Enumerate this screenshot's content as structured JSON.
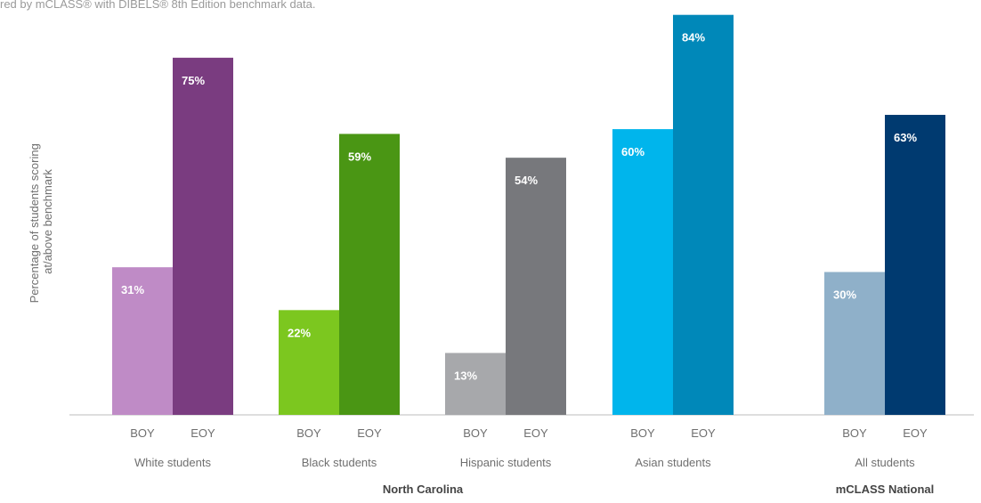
{
  "header_note": "red by mCLASS® with DIBELS® 8th Edition benchmark data.",
  "colors": {
    "white_boy": "#bf8bc6",
    "white_eoy": "#7a3c80",
    "black_boy": "#7cc71f",
    "black_eoy": "#4a9614",
    "hispanic_boy": "#a7a8ab",
    "hispanic_eoy": "#77787c",
    "asian_boy": "#00b5ec",
    "asian_eoy": "#0088b9",
    "national_boy": "#8fb0c9",
    "national_eoy": "#003a70"
  },
  "chart_data": {
    "type": "bar",
    "title": "",
    "xlabel": "",
    "ylabel": "Percentage of students scoring at/above benchmark",
    "ylabel_lines": [
      "Percentage of students scoring",
      "at/above benchmark"
    ],
    "ylim": [
      0,
      86
    ],
    "grid": false,
    "legend": "none",
    "group_sections": [
      {
        "label": "North Carolina",
        "groups": [
          0,
          1,
          2,
          3
        ]
      },
      {
        "label": "mCLASS National",
        "groups": [
          4
        ]
      }
    ],
    "groups": [
      {
        "label": "White students",
        "bars": [
          {
            "category": "BOY",
            "value": 31,
            "label": "31%",
            "color": "white_boy"
          },
          {
            "category": "EOY",
            "value": 75,
            "label": "75%",
            "color": "white_eoy"
          }
        ]
      },
      {
        "label": "Black students",
        "bars": [
          {
            "category": "BOY",
            "value": 22,
            "label": "22%",
            "color": "black_boy"
          },
          {
            "category": "EOY",
            "value": 59,
            "label": "59%",
            "color": "black_eoy"
          }
        ]
      },
      {
        "label": "Hispanic students",
        "bars": [
          {
            "category": "BOY",
            "value": 13,
            "label": "13%",
            "color": "hispanic_boy"
          },
          {
            "category": "EOY",
            "value": 54,
            "label": "54%",
            "color": "hispanic_eoy"
          }
        ]
      },
      {
        "label": "Asian students",
        "bars": [
          {
            "category": "BOY",
            "value": 60,
            "label": "60%",
            "color": "asian_boy"
          },
          {
            "category": "EOY",
            "value": 84,
            "label": "84%",
            "color": "asian_eoy"
          }
        ]
      },
      {
        "label": "All students",
        "bars": [
          {
            "category": "BOY",
            "value": 30,
            "label": "30%",
            "color": "national_boy"
          },
          {
            "category": "EOY",
            "value": 63,
            "label": "63%",
            "color": "national_eoy"
          }
        ]
      }
    ]
  }
}
